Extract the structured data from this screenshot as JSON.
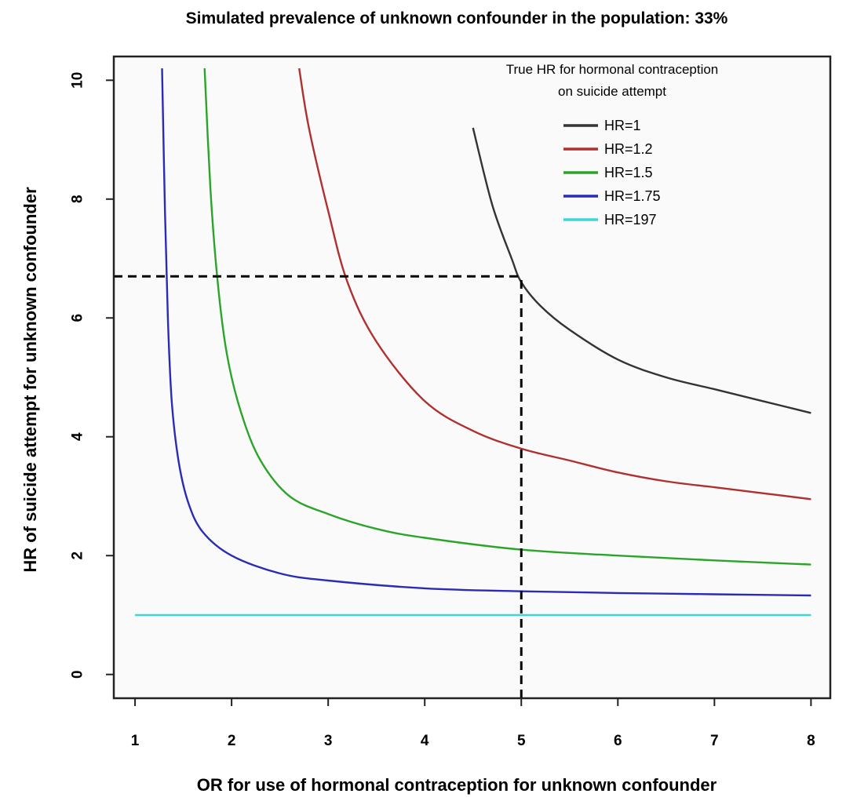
{
  "chart_data": {
    "type": "line",
    "title": "Simulated prevalence of unknown confounder  in the population: 33%",
    "xlabel": "OR for use of hormonal contraception for unknown confounder",
    "ylabel": "HR of suicide attempt for unknown confounder",
    "xlim": [
      0.78,
      8.2
    ],
    "ylim": [
      -0.4,
      10.4
    ],
    "x_ticks": [
      1,
      2,
      3,
      4,
      5,
      6,
      7,
      8
    ],
    "y_ticks": [
      0,
      2,
      4,
      6,
      8,
      10
    ],
    "grid": false,
    "legend": {
      "title_lines": [
        "True HR for hormonal contraception",
        "on suicide attempt"
      ],
      "placement": "top-right"
    },
    "series": [
      {
        "name": "HR=1",
        "color": "#333333",
        "x": [
          4.5,
          4.7,
          4.9,
          5.0,
          5.2,
          5.5,
          6.0,
          6.5,
          7.0,
          7.5,
          8.0
        ],
        "y": [
          9.2,
          7.9,
          7.0,
          6.6,
          6.2,
          5.8,
          5.3,
          5.0,
          4.8,
          4.6,
          4.4
        ]
      },
      {
        "name": "HR=1.2",
        "color": "#b03030",
        "x": [
          2.7,
          2.8,
          3.0,
          3.2,
          3.5,
          4.0,
          4.5,
          5.0,
          5.5,
          6.0,
          6.5,
          7.0,
          7.5,
          8.0
        ],
        "y": [
          10.2,
          9.2,
          7.8,
          6.6,
          5.6,
          4.6,
          4.1,
          3.8,
          3.6,
          3.4,
          3.25,
          3.15,
          3.05,
          2.95
        ]
      },
      {
        "name": "HR=1.5",
        "color": "#2aa52a",
        "x": [
          1.72,
          1.78,
          1.85,
          1.95,
          2.1,
          2.3,
          2.6,
          3.0,
          3.5,
          4.0,
          5.0,
          6.0,
          7.0,
          8.0
        ],
        "y": [
          10.2,
          8.2,
          6.7,
          5.4,
          4.4,
          3.6,
          3.0,
          2.7,
          2.45,
          2.3,
          2.1,
          2.0,
          1.92,
          1.85
        ]
      },
      {
        "name": "HR=1.75",
        "color": "#2b2bb8",
        "x": [
          1.28,
          1.31,
          1.34,
          1.38,
          1.45,
          1.55,
          1.7,
          2.0,
          2.5,
          3.0,
          4.0,
          5.0,
          6.0,
          7.0,
          8.0
        ],
        "y": [
          10.2,
          7.8,
          6.0,
          4.6,
          3.6,
          2.9,
          2.4,
          2.0,
          1.7,
          1.58,
          1.45,
          1.4,
          1.37,
          1.35,
          1.33
        ]
      },
      {
        "name": "HR=197",
        "color": "#3dd6d6",
        "x": [
          1,
          8
        ],
        "y": [
          1.0,
          1.0
        ]
      }
    ],
    "reference_lines": [
      {
        "type": "horizontal",
        "y": 6.7,
        "x_from": 0.78,
        "x_to": 5.0,
        "style": "dashed",
        "color": "#000000"
      },
      {
        "type": "vertical",
        "x": 5.0,
        "y_from": -0.4,
        "y_to": 6.7,
        "style": "dashed",
        "color": "#000000"
      }
    ]
  }
}
